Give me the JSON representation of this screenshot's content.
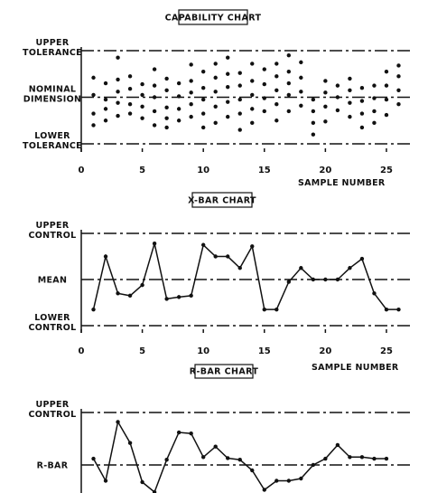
{
  "chart_data": [
    {
      "type": "scatter",
      "title": "CAPABILITY CHART",
      "xlabel": "SAMPLE NUMBER",
      "xlim": [
        0,
        27
      ],
      "ylim": [
        -1,
        1
      ],
      "reference_lines": [
        {
          "label_lines": [
            "UPPER",
            "TOLERANCE"
          ],
          "value": 1
        },
        {
          "label_lines": [
            "NOMINAL",
            "DIMENSION"
          ],
          "value": 0
        },
        {
          "label_lines": [
            "LOWER",
            "TOLERANCE"
          ],
          "value": -1
        }
      ],
      "xticks": [
        0,
        5,
        10,
        15,
        20,
        25
      ],
      "points": [
        [
          1,
          0.42
        ],
        [
          1,
          0.05
        ],
        [
          1,
          -0.35
        ],
        [
          1,
          -0.6
        ],
        [
          2,
          0.3
        ],
        [
          2,
          -0.05
        ],
        [
          2,
          -0.25
        ],
        [
          2,
          -0.5
        ],
        [
          3,
          0.85
        ],
        [
          3,
          0.38
        ],
        [
          3,
          0.12
        ],
        [
          3,
          -0.12
        ],
        [
          3,
          -0.4
        ],
        [
          4,
          0.45
        ],
        [
          4,
          0.18
        ],
        [
          4,
          -0.15
        ],
        [
          4,
          -0.35
        ],
        [
          5,
          0.28
        ],
        [
          5,
          0.05
        ],
        [
          5,
          -0.2
        ],
        [
          5,
          -0.45
        ],
        [
          6,
          0.6
        ],
        [
          6,
          0.25
        ],
        [
          6,
          0.0
        ],
        [
          6,
          -0.3
        ],
        [
          6,
          -0.6
        ],
        [
          7,
          0.4
        ],
        [
          7,
          0.15
        ],
        [
          7,
          -0.22
        ],
        [
          7,
          -0.45
        ],
        [
          7,
          -0.65
        ],
        [
          8,
          0.3
        ],
        [
          8,
          0.02
        ],
        [
          8,
          -0.25
        ],
        [
          8,
          -0.5
        ],
        [
          9,
          0.7
        ],
        [
          9,
          0.35
        ],
        [
          9,
          0.1
        ],
        [
          9,
          -0.15
        ],
        [
          9,
          -0.42
        ],
        [
          10,
          0.55
        ],
        [
          10,
          0.2
        ],
        [
          10,
          -0.05
        ],
        [
          10,
          -0.35
        ],
        [
          10,
          -0.65
        ],
        [
          11,
          0.72
        ],
        [
          11,
          0.42
        ],
        [
          11,
          0.12
        ],
        [
          11,
          -0.2
        ],
        [
          11,
          -0.55
        ],
        [
          12,
          0.85
        ],
        [
          12,
          0.5
        ],
        [
          12,
          0.22
        ],
        [
          12,
          -0.1
        ],
        [
          12,
          -0.42
        ],
        [
          13,
          0.52
        ],
        [
          13,
          0.25
        ],
        [
          13,
          -0.05
        ],
        [
          13,
          -0.35
        ],
        [
          13,
          -0.7
        ],
        [
          14,
          0.72
        ],
        [
          14,
          0.35
        ],
        [
          14,
          0.05
        ],
        [
          14,
          -0.25
        ],
        [
          14,
          -0.55
        ],
        [
          15,
          0.6
        ],
        [
          15,
          0.28
        ],
        [
          15,
          -0.02
        ],
        [
          15,
          -0.3
        ],
        [
          16,
          0.72
        ],
        [
          16,
          0.45
        ],
        [
          16,
          0.15
        ],
        [
          16,
          -0.15
        ],
        [
          16,
          -0.5
        ],
        [
          17,
          0.9
        ],
        [
          17,
          0.55
        ],
        [
          17,
          0.3
        ],
        [
          17,
          0.05
        ],
        [
          17,
          -0.3
        ],
        [
          18,
          0.75
        ],
        [
          18,
          0.42
        ],
        [
          18,
          0.12
        ],
        [
          18,
          -0.18
        ],
        [
          19,
          -0.05
        ],
        [
          19,
          -0.3
        ],
        [
          19,
          -0.55
        ],
        [
          19,
          -0.8
        ],
        [
          20,
          0.35
        ],
        [
          20,
          0.1
        ],
        [
          20,
          -0.2
        ],
        [
          20,
          -0.52
        ],
        [
          21,
          0.25
        ],
        [
          21,
          0.0
        ],
        [
          21,
          -0.28
        ],
        [
          22,
          0.4
        ],
        [
          22,
          0.15
        ],
        [
          22,
          -0.12
        ],
        [
          22,
          -0.42
        ],
        [
          23,
          0.2
        ],
        [
          23,
          -0.08
        ],
        [
          23,
          -0.35
        ],
        [
          23,
          -0.65
        ],
        [
          24,
          0.25
        ],
        [
          24,
          -0.02
        ],
        [
          24,
          -0.3
        ],
        [
          24,
          -0.55
        ],
        [
          25,
          0.55
        ],
        [
          25,
          0.25
        ],
        [
          25,
          -0.05
        ],
        [
          25,
          -0.38
        ],
        [
          26,
          0.68
        ],
        [
          26,
          0.45
        ],
        [
          26,
          0.15
        ],
        [
          26,
          -0.15
        ]
      ]
    },
    {
      "type": "line",
      "title": "X-BAR CHART",
      "xlabel": "SAMPLE NUMBER",
      "xlim": [
        0,
        27
      ],
      "ylim": [
        -1,
        1
      ],
      "reference_lines": [
        {
          "label_lines": [
            "UPPER",
            "CONTROL"
          ],
          "value": 1
        },
        {
          "label_lines": [
            "MEAN"
          ],
          "value": 0
        },
        {
          "label_lines": [
            "LOWER",
            "CONTROL"
          ],
          "value": -1
        }
      ],
      "xticks": [
        0,
        5,
        10,
        15,
        20,
        25
      ],
      "x": [
        1,
        2,
        3,
        4,
        5,
        6,
        7,
        8,
        9,
        10,
        11,
        12,
        13,
        14,
        15,
        16,
        17,
        18,
        19,
        20,
        21,
        22,
        23,
        24,
        25,
        26
      ],
      "y": [
        -0.65,
        0.5,
        -0.3,
        -0.35,
        -0.12,
        0.78,
        -0.42,
        -0.38,
        -0.35,
        0.75,
        0.5,
        0.5,
        0.25,
        0.72,
        -0.65,
        -0.65,
        -0.05,
        0.25,
        0.0,
        0.0,
        0.0,
        0.25,
        0.45,
        -0.3,
        -0.65,
        -0.65
      ]
    },
    {
      "type": "line",
      "title": "R-BAR CHART",
      "xlim": [
        0,
        27
      ],
      "ylim": [
        -0.6,
        1
      ],
      "reference_lines": [
        {
          "label_lines": [
            "UPPER",
            "CONTROL"
          ],
          "value": 1
        },
        {
          "label_lines": [
            "R-BAR"
          ],
          "value": 0
        }
      ],
      "x": [
        1,
        2,
        3,
        4,
        5,
        6,
        7,
        8,
        9,
        10,
        11,
        12,
        13,
        14,
        15,
        16,
        17,
        18,
        19,
        20,
        21,
        22,
        23,
        24,
        25
      ],
      "y": [
        0.12,
        -0.35,
        0.82,
        0.42,
        -0.38,
        -0.6,
        0.1,
        0.62,
        0.6,
        0.15,
        0.35,
        0.13,
        0.1,
        -0.12,
        -0.55,
        -0.35,
        -0.35,
        -0.3,
        0.0,
        0.12,
        0.38,
        0.15,
        0.15,
        0.12,
        0.12
      ]
    }
  ]
}
